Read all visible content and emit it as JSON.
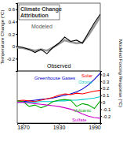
{
  "chart_data": [
    {
      "type": "line",
      "title": "Climate Change Attribution",
      "y_label": "Temperature Change (°C)",
      "x": [
        1860,
        1870,
        1880,
        1890,
        1900,
        1910,
        1920,
        1930,
        1940,
        1950,
        1960,
        1970,
        1980,
        1990,
        2000
      ],
      "xlim": [
        1860,
        2000
      ],
      "ylim": [
        -0.4,
        0.7
      ],
      "yticks": [
        -0.2,
        0,
        0.2,
        0.4,
        0.6
      ],
      "tick_labels": "y",
      "series": [
        {
          "name": "Modeled",
          "color": "#999999",
          "values": [
            -0.02,
            -0.03,
            -0.05,
            -0.07,
            -0.05,
            -0.07,
            -0.02,
            0.04,
            0.1,
            0.07,
            0.05,
            0.06,
            0.18,
            0.33,
            0.48
          ]
        },
        {
          "name": "Observed",
          "color": "#000000",
          "values": [
            0.0,
            -0.02,
            -0.05,
            -0.1,
            -0.05,
            -0.12,
            -0.02,
            0.05,
            0.15,
            0.08,
            0.1,
            0.05,
            0.22,
            0.38,
            0.52
          ]
        }
      ]
    },
    {
      "type": "line",
      "y2_label": "Modeled Forcing Response (°C)",
      "x": [
        1860,
        1870,
        1880,
        1890,
        1900,
        1910,
        1920,
        1930,
        1940,
        1950,
        1960,
        1970,
        1980,
        1990,
        2000
      ],
      "xlim": [
        1860,
        2000
      ],
      "xticks": [
        1870,
        1930,
        1990
      ],
      "y2lim": [
        -0.3,
        0.45
      ],
      "y2ticks": [
        -0.2,
        -0.1,
        0,
        0.1,
        0.2,
        0.3,
        0.4
      ],
      "series": [
        {
          "name": "Greenhouse Gases",
          "color": "#0000cc",
          "axis": "y2",
          "values": [
            0.0,
            0.01,
            0.02,
            0.03,
            0.04,
            0.05,
            0.06,
            0.08,
            0.1,
            0.12,
            0.15,
            0.19,
            0.25,
            0.33,
            0.42
          ]
        },
        {
          "name": "Solar",
          "color": "#ff0000",
          "axis": "y2",
          "values": [
            0.02,
            0.03,
            0.02,
            0.01,
            0.03,
            0.05,
            0.07,
            0.1,
            0.12,
            0.11,
            0.13,
            0.12,
            0.14,
            0.16,
            0.17
          ]
        },
        {
          "name": "Ozone",
          "color": "#00cccc",
          "axis": "y2",
          "values": [
            0.0,
            0.0,
            0.0,
            0.0,
            0.01,
            0.01,
            0.01,
            0.02,
            0.02,
            0.03,
            0.03,
            0.04,
            0.05,
            0.06,
            0.08
          ]
        },
        {
          "name": "Volcanic",
          "color": "#00aa00",
          "axis": "y2",
          "values": [
            0.02,
            0.01,
            -0.06,
            -0.04,
            -0.08,
            -0.05,
            0.01,
            0.03,
            0.04,
            0.03,
            -0.06,
            -0.02,
            -0.04,
            -0.09,
            0.02
          ]
        },
        {
          "name": "Sulfate",
          "color": "#cc00cc",
          "axis": "y2",
          "values": [
            0.0,
            0.0,
            -0.01,
            -0.02,
            -0.03,
            -0.04,
            -0.05,
            -0.06,
            -0.08,
            -0.1,
            -0.13,
            -0.17,
            -0.2,
            -0.22,
            -0.23
          ]
        }
      ]
    }
  ]
}
